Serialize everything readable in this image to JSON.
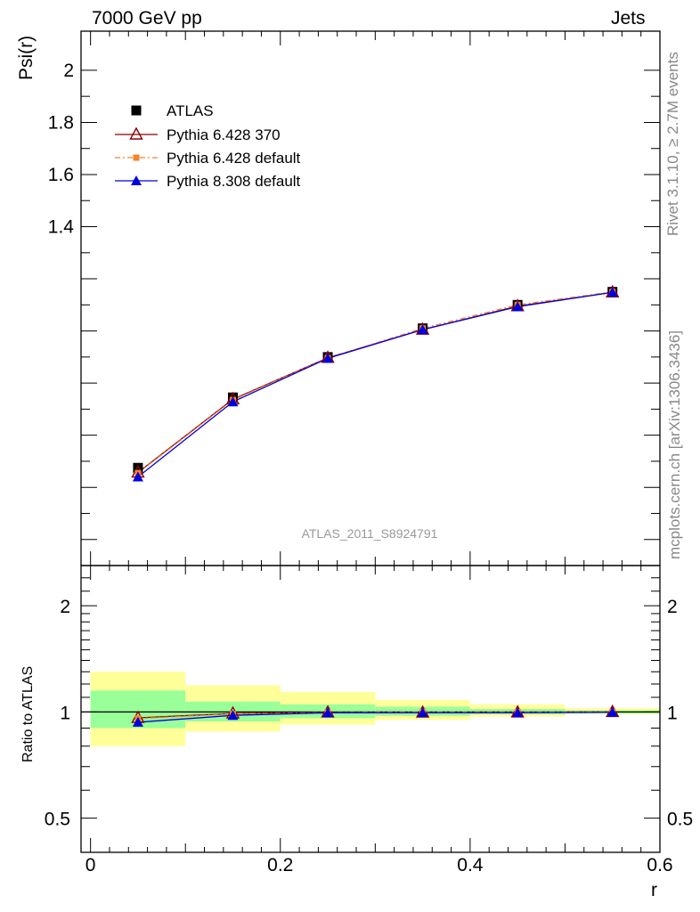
{
  "header": {
    "left": "7000 GeV pp",
    "right": "Jets"
  },
  "side_labels": {
    "rivet": "Rivet 3.1.10, ≥ 2.7M events",
    "mcplots": "mcplots.cern.ch [arXiv:1306.3436]"
  },
  "chart_data": {
    "type": "line",
    "analysis_label": "ATLAS_2011_S8924791",
    "xlabel": "r",
    "ylabel": "Psi(r)",
    "ratio_ylabel": "Ratio to ATLAS",
    "xlim": [
      -0.01,
      0.6
    ],
    "ylim": [
      0.1,
      2.15
    ],
    "ratio_ylim": [
      0.4,
      2.6
    ],
    "ratio_scale": "log",
    "x_ticks": [
      "0",
      "0.2",
      "0.4",
      "0.6"
    ],
    "y_ticks": [
      "1.4",
      "1.6",
      "1.8",
      "2"
    ],
    "ratio_ticks": [
      "0.5",
      "1",
      "2"
    ],
    "x": [
      0.05,
      0.15,
      0.25,
      0.35,
      0.45,
      0.55
    ],
    "x_bins": [
      [
        0.0,
        0.1
      ],
      [
        0.1,
        0.2
      ],
      [
        0.2,
        0.3
      ],
      [
        0.3,
        0.4
      ],
      [
        0.4,
        0.5
      ],
      [
        0.5,
        0.6
      ]
    ],
    "band_inner": [
      [
        0.9,
        1.15
      ],
      [
        0.94,
        1.07
      ],
      [
        0.96,
        1.05
      ],
      [
        0.975,
        1.035
      ],
      [
        0.985,
        1.02
      ],
      [
        0.99,
        1.01
      ]
    ],
    "band_outer": [
      [
        0.8,
        1.3
      ],
      [
        0.88,
        1.19
      ],
      [
        0.92,
        1.14
      ],
      [
        0.95,
        1.08
      ],
      [
        0.97,
        1.05
      ],
      [
        0.985,
        1.025
      ]
    ],
    "series": [
      {
        "name": "ATLAS",
        "values": [
          0.475,
          0.745,
          0.9,
          1.01,
          1.1,
          1.15
        ],
        "ratio": [
          1,
          1,
          1,
          1,
          1,
          1
        ],
        "color": "#000000",
        "marker": "square"
      },
      {
        "name": "Pythia 6.428 370",
        "values": [
          0.457,
          0.738,
          0.897,
          1.005,
          1.095,
          1.148
        ],
        "ratio": [
          0.962,
          0.99,
          0.997,
          0.996,
          0.997,
          1.0
        ],
        "color": "#8b0000",
        "marker": "open-triangle"
      },
      {
        "name": "Pythia 6.428 default",
        "values": [
          0.455,
          0.735,
          0.896,
          1.01,
          1.1,
          1.15
        ],
        "ratio": [
          0.958,
          0.987,
          0.996,
          1.0,
          1.0,
          1.0
        ],
        "color": "#f4822a",
        "marker": "small-square",
        "dashed": true
      },
      {
        "name": "Pythia 8.308 default",
        "values": [
          0.44,
          0.728,
          0.895,
          1.005,
          1.093,
          1.148
        ],
        "ratio": [
          0.935,
          0.978,
          0.994,
          0.995,
          0.995,
          0.998
        ],
        "color": "#0000e0",
        "marker": "filled-triangle"
      }
    ]
  }
}
